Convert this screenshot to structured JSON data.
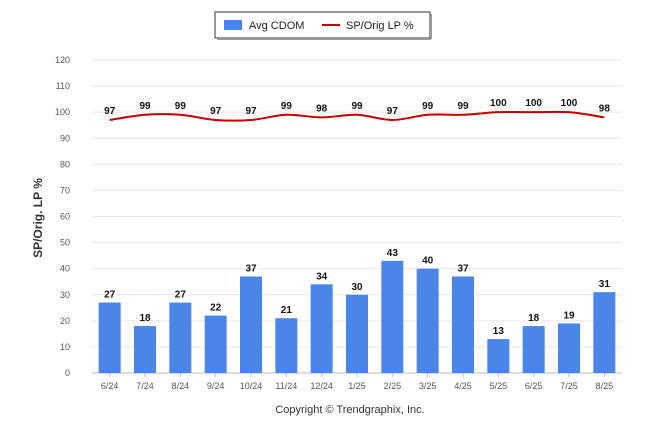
{
  "chart_data": {
    "type": "bar",
    "categories": [
      "6/24",
      "7/24",
      "8/24",
      "9/24",
      "10/24",
      "11/24",
      "12/24",
      "1/25",
      "2/25",
      "3/25",
      "4/25",
      "5/25",
      "6/25",
      "7/25",
      "8/25"
    ],
    "series": [
      {
        "name": "Avg CDOM",
        "type": "bar",
        "color": "#4a86e8",
        "values": [
          27,
          18,
          27,
          22,
          37,
          21,
          34,
          30,
          43,
          40,
          37,
          13,
          18,
          19,
          31
        ]
      },
      {
        "name": "SP/Orig LP %",
        "type": "line",
        "color": "#c00000",
        "values": [
          97,
          99,
          99,
          97,
          97,
          99,
          98,
          99,
          97,
          99,
          99,
          100,
          100,
          100,
          98
        ]
      }
    ],
    "ylabel": "SP/Orig. LP %",
    "xlabel": "",
    "ylim": [
      0,
      120
    ],
    "yticks": [
      0,
      10,
      20,
      30,
      40,
      50,
      60,
      70,
      80,
      90,
      100,
      110,
      120
    ],
    "grid": true,
    "legend": "top-center"
  },
  "credit": "Copyright © Trendgraphix, Inc."
}
